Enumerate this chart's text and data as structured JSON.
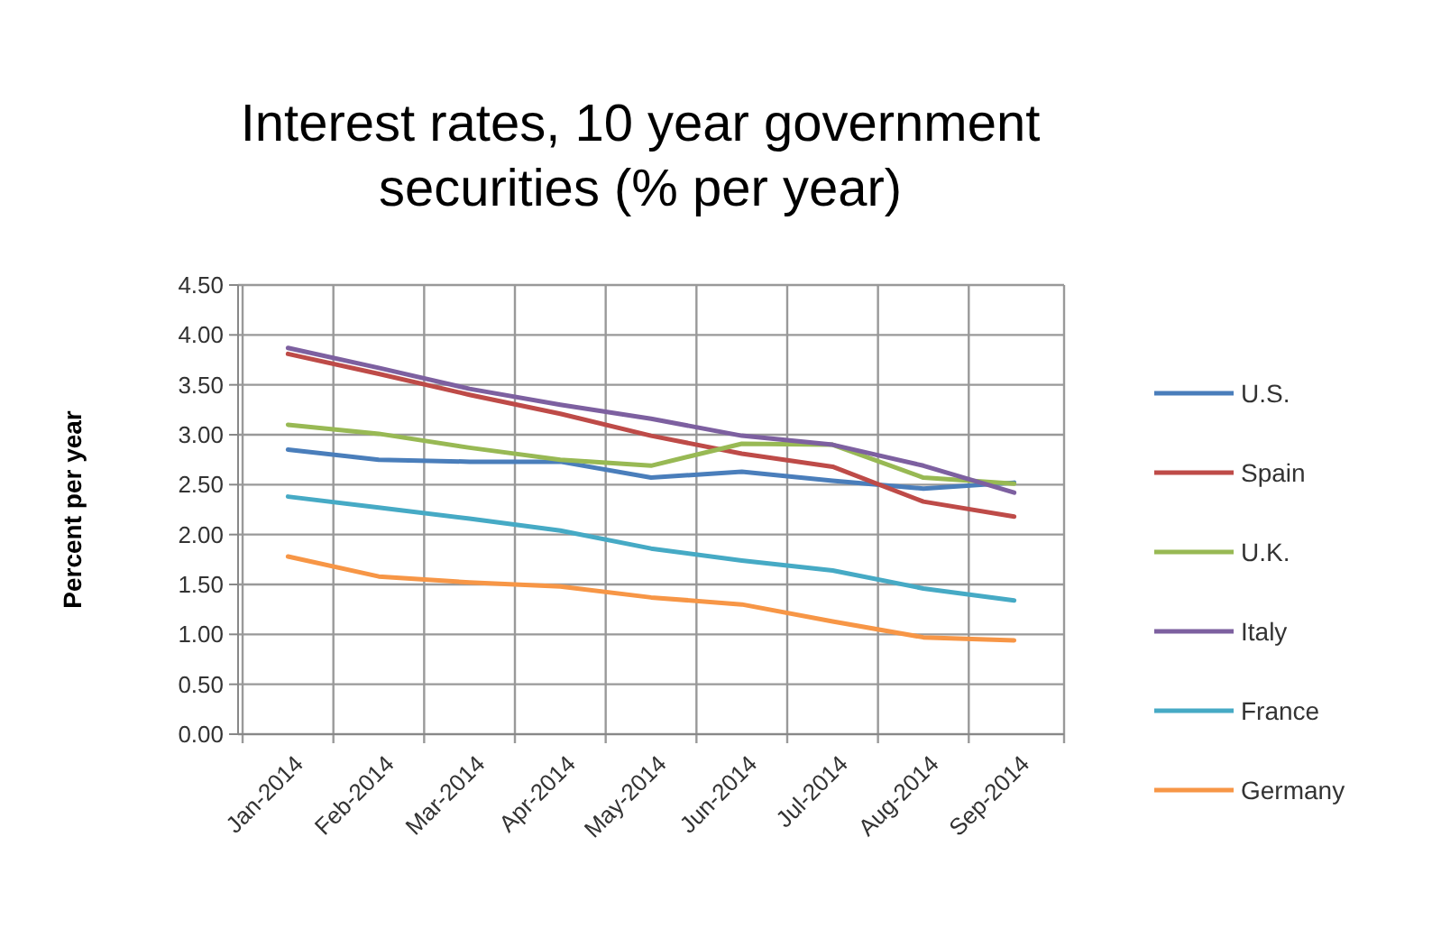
{
  "chart_data": {
    "type": "line",
    "title": "Interest rates, 10 year government securities (% per year)",
    "ylabel": "Percent per year",
    "categories": [
      "Jan-2014",
      "Feb-2014",
      "Mar-2014",
      "Apr-2014",
      "May-2014",
      "Jun-2014",
      "Jul-2014",
      "Aug-2014",
      "Sep-2014"
    ],
    "series": [
      {
        "name": "U.S.",
        "color": "#4a7ebb",
        "values": [
          2.85,
          2.75,
          2.73,
          2.73,
          2.57,
          2.63,
          2.54,
          2.46,
          2.52
        ]
      },
      {
        "name": "Spain",
        "color": "#be4b48",
        "values": [
          3.81,
          3.61,
          3.4,
          3.21,
          2.99,
          2.81,
          2.68,
          2.33,
          2.18
        ]
      },
      {
        "name": "U.K.",
        "color": "#98b954",
        "values": [
          3.1,
          3.01,
          2.87,
          2.75,
          2.69,
          2.91,
          2.9,
          2.57,
          2.51
        ]
      },
      {
        "name": "Italy",
        "color": "#7d60a0",
        "values": [
          3.87,
          3.67,
          3.46,
          3.3,
          3.16,
          2.99,
          2.9,
          2.69,
          2.42
        ]
      },
      {
        "name": "France",
        "color": "#46aac5",
        "values": [
          2.38,
          2.27,
          2.16,
          2.04,
          1.86,
          1.74,
          1.64,
          1.46,
          1.34
        ]
      },
      {
        "name": "Germany",
        "color": "#f79646",
        "values": [
          1.78,
          1.58,
          1.52,
          1.48,
          1.37,
          1.3,
          1.13,
          0.97,
          0.94
        ]
      }
    ],
    "ylim": [
      0,
      4.5
    ],
    "yticks": [
      {
        "value": 0,
        "label": "0.00"
      },
      {
        "value": 0.5,
        "label": "0.50"
      },
      {
        "value": 1,
        "label": "1.00"
      },
      {
        "value": 1.5,
        "label": "1.50"
      },
      {
        "value": 2,
        "label": "2.00"
      },
      {
        "value": 2.5,
        "label": "2.50"
      },
      {
        "value": 3,
        "label": "3.00"
      },
      {
        "value": 3.5,
        "label": "3.50"
      },
      {
        "value": 4,
        "label": "4.00"
      },
      {
        "value": 4.5,
        "label": "4.50"
      }
    ],
    "grid": true,
    "legend": "right",
    "marker": "none",
    "line_style": "solid"
  }
}
